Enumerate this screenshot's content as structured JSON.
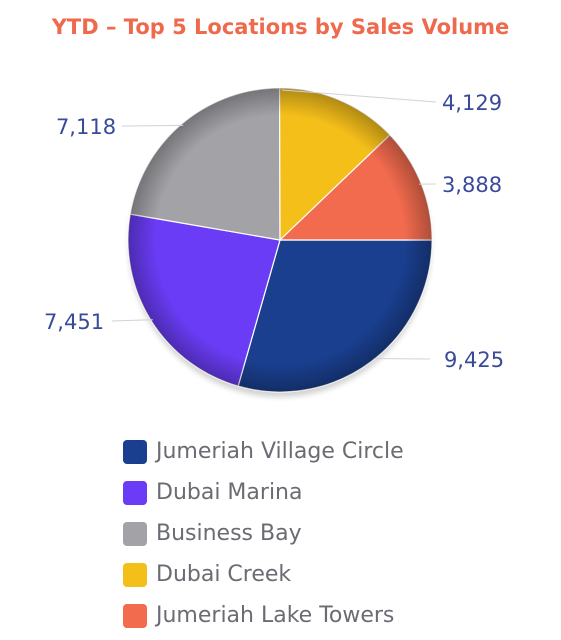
{
  "chart_data": {
    "type": "pie",
    "title": "YTD – Top 5 Locations by Sales Volume",
    "categories": [
      "Jumeriah Village Circle",
      "Dubai Marina",
      "Business Bay",
      "Dubai Creek",
      "Jumeriah Lake Towers"
    ],
    "values": [
      9425,
      7451,
      7118,
      4129,
      3888
    ],
    "labels": [
      "9,425",
      "7,451",
      "7,118",
      "4,129",
      "3,888"
    ],
    "colors": [
      "#1a3f8f",
      "#6a3cf5",
      "#a2a2a7",
      "#f5bf1a",
      "#f26b4e"
    ],
    "legend_position": "bottom"
  },
  "colors": {
    "title": "#ef6a4c",
    "data_label": "#3a4a9a",
    "leader_line": "#cfd2d8",
    "legend_text": "#6b6b73"
  }
}
